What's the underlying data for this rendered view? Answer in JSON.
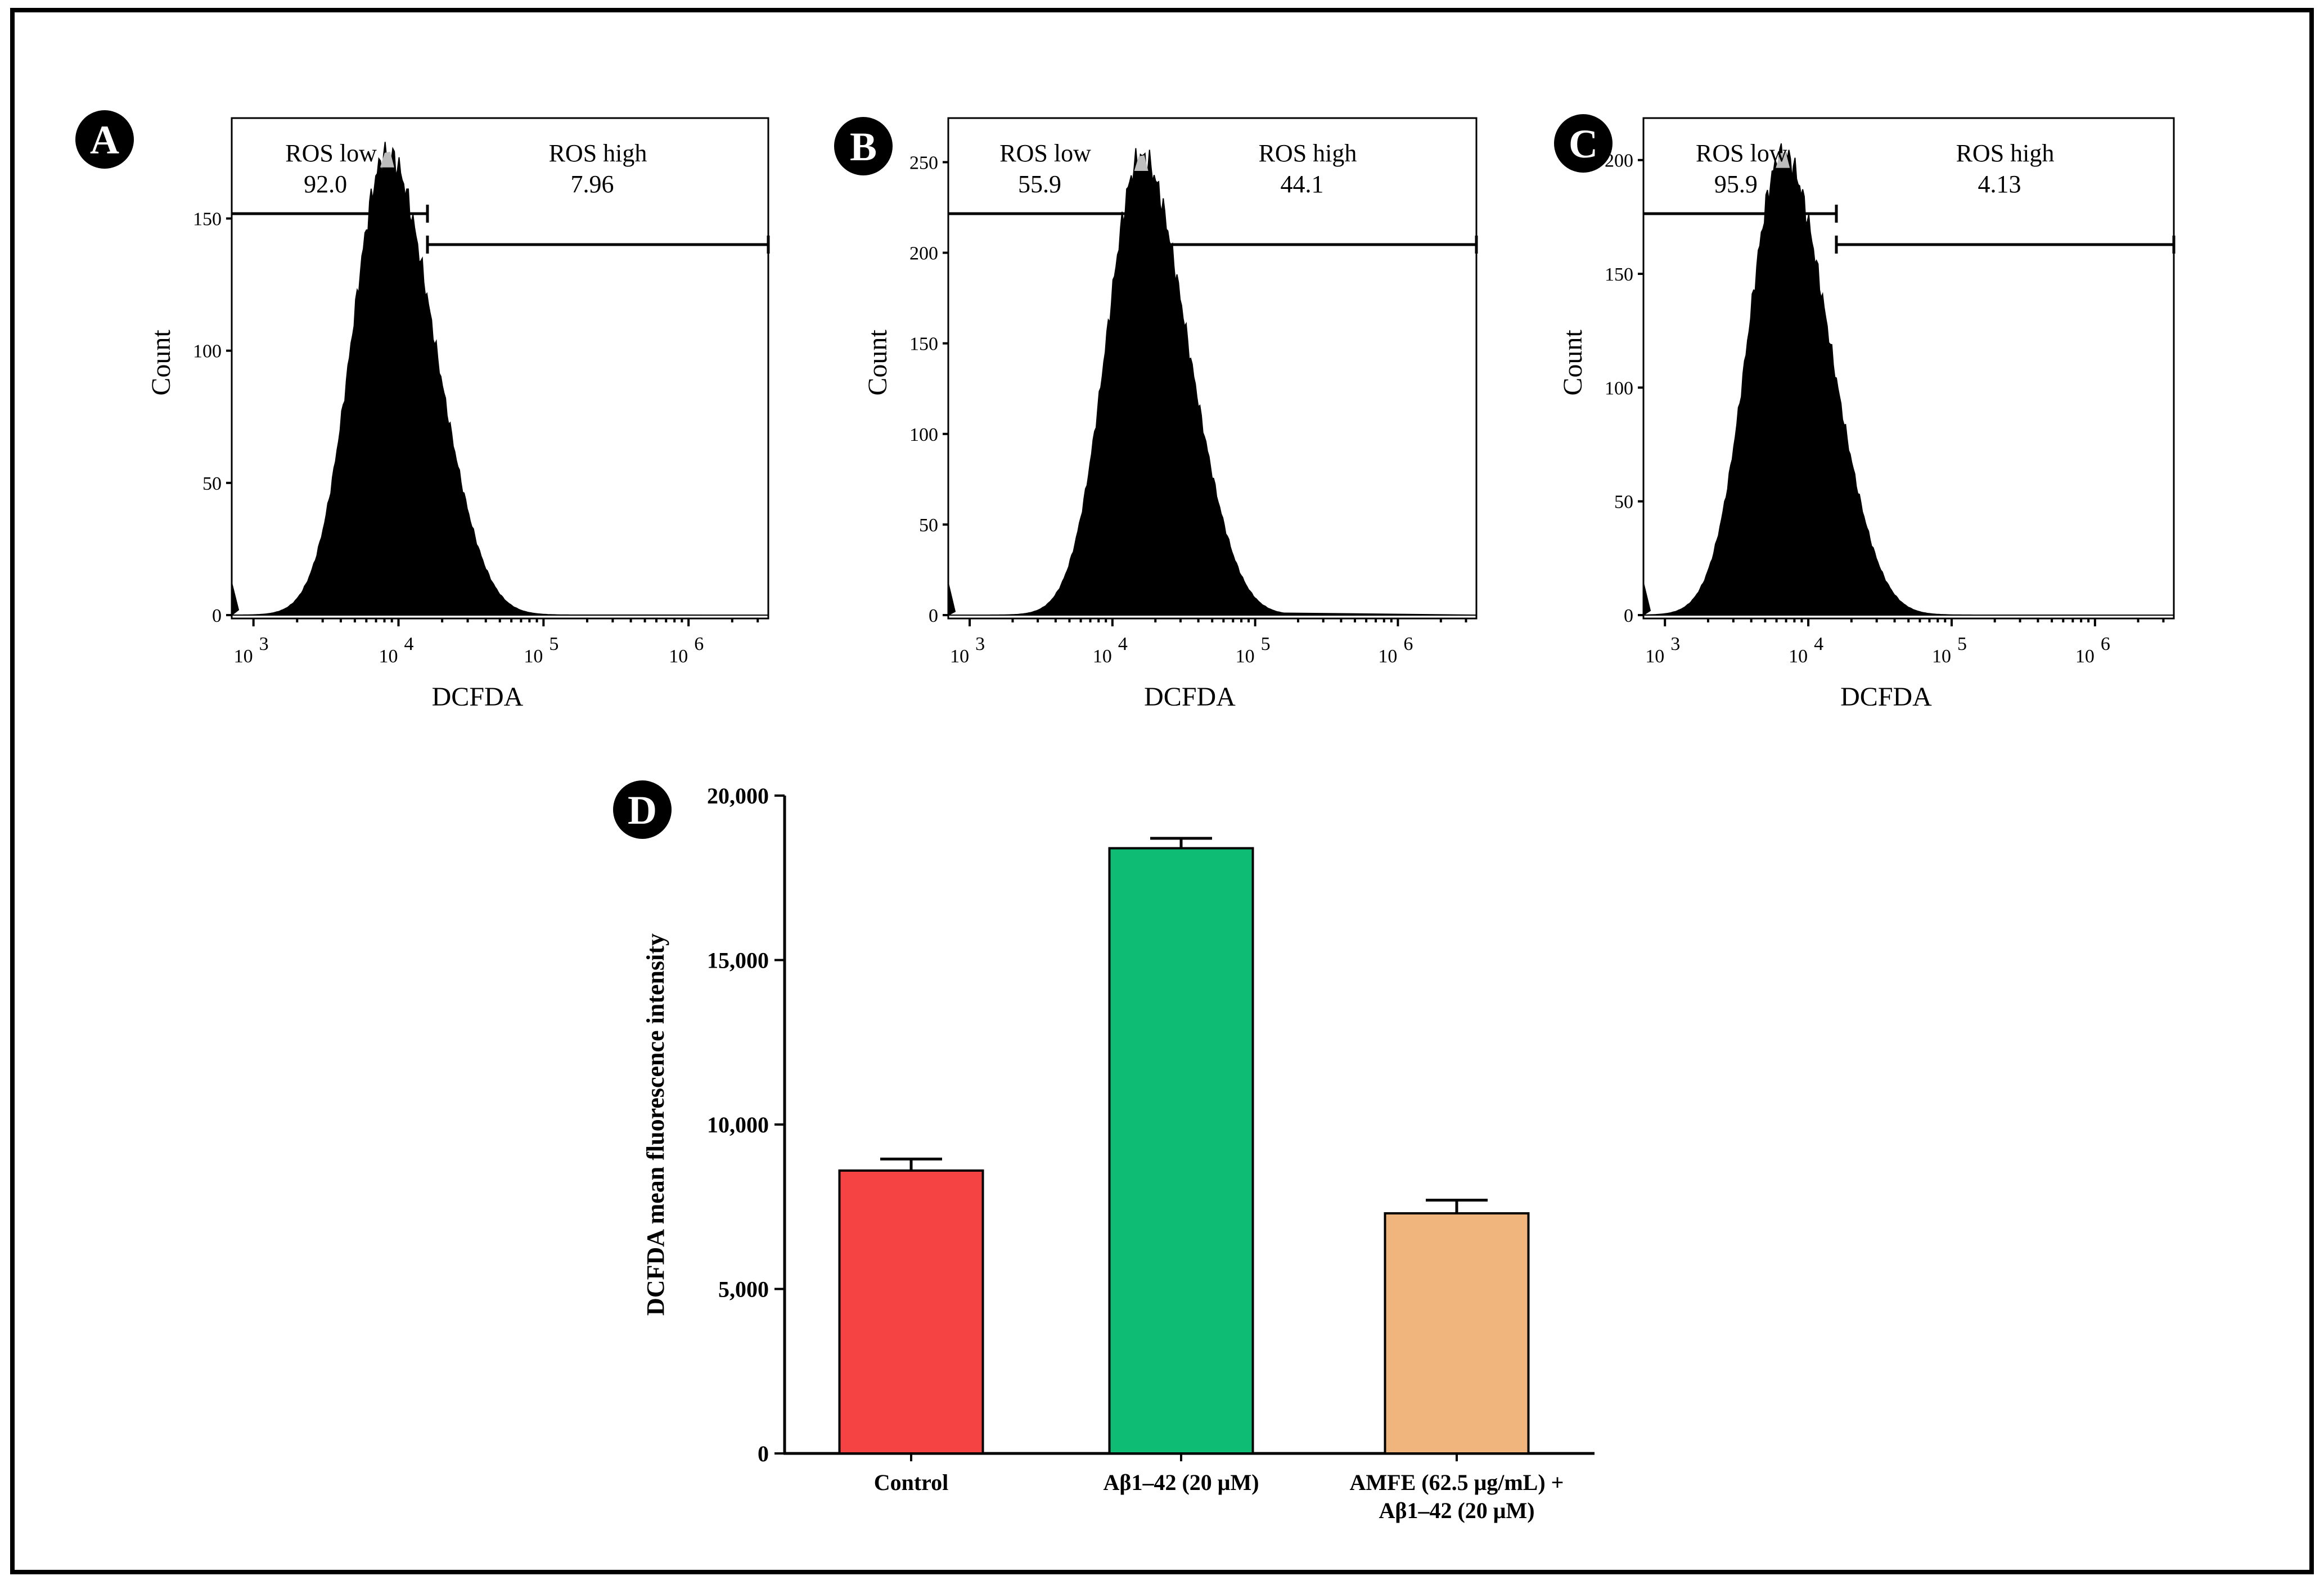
{
  "chart_data": [
    {
      "panel": "A",
      "type": "histogram",
      "xlabel": "DCFDA",
      "ylabel": "Count",
      "x_scale": "log",
      "x_ticks": [
        {
          "base": "10",
          "exp": "3"
        },
        {
          "base": "10",
          "exp": "4"
        },
        {
          "base": "10",
          "exp": "5"
        },
        {
          "base": "10",
          "exp": "6"
        }
      ],
      "y_ticks": [
        0,
        50,
        100,
        150
      ],
      "ylim": [
        0,
        185
      ],
      "xlim_log10": [
        2.85,
        6.55
      ],
      "peak_log10": 3.92,
      "peak_count": 174,
      "gates": [
        {
          "name": "ROS low",
          "value": "92.0"
        },
        {
          "name": "ROS high",
          "value": "7.96"
        }
      ]
    },
    {
      "panel": "B",
      "type": "histogram",
      "xlabel": "DCFDA",
      "ylabel": "Count",
      "x_scale": "log",
      "x_ticks": [
        {
          "base": "10",
          "exp": "3"
        },
        {
          "base": "10",
          "exp": "4"
        },
        {
          "base": "10",
          "exp": "5"
        },
        {
          "base": "10",
          "exp": "6"
        }
      ],
      "y_ticks": [
        0,
        50,
        100,
        150,
        200,
        250
      ],
      "ylim": [
        0,
        270
      ],
      "xlim_log10": [
        2.85,
        6.55
      ],
      "peak_log10": 4.2,
      "peak_count": 252,
      "gates": [
        {
          "name": "ROS low",
          "value": "55.9"
        },
        {
          "name": "ROS high",
          "value": "44.1"
        }
      ]
    },
    {
      "panel": "C",
      "type": "histogram",
      "xlabel": "DCFDA",
      "ylabel": "Count",
      "x_scale": "log",
      "x_ticks": [
        {
          "base": "10",
          "exp": "3"
        },
        {
          "base": "10",
          "exp": "4"
        },
        {
          "base": "10",
          "exp": "5"
        },
        {
          "base": "10",
          "exp": "6"
        }
      ],
      "y_ticks": [
        0,
        50,
        100,
        150,
        200
      ],
      "ylim": [
        0,
        215
      ],
      "xlim_log10": [
        2.85,
        6.55
      ],
      "peak_log10": 3.82,
      "peak_count": 202,
      "gates": [
        {
          "name": "ROS low",
          "value": "95.9"
        },
        {
          "name": "ROS high",
          "value": "4.13"
        }
      ]
    },
    {
      "panel": "D",
      "type": "bar",
      "title": "",
      "xlabel": "",
      "ylabel": "DCFDA mean fluorescence intensity",
      "categories": [
        [
          "Control"
        ],
        [
          "Aβ1–42 (20 μM)"
        ],
        [
          "AMFE (62.5 μg/mL) +",
          "Aβ1–42 (20 μM)"
        ]
      ],
      "values": [
        8600,
        18400,
        7300
      ],
      "errors": [
        350,
        300,
        400
      ],
      "colors": [
        "#f54242",
        "#0ebc74",
        "#efb57c"
      ],
      "ylim": [
        0,
        20000
      ],
      "y_ticks": [
        "0",
        "5,000",
        "10,000",
        "15,000",
        "20,000"
      ],
      "y_tick_values": [
        0,
        5000,
        10000,
        15000,
        20000
      ]
    }
  ]
}
